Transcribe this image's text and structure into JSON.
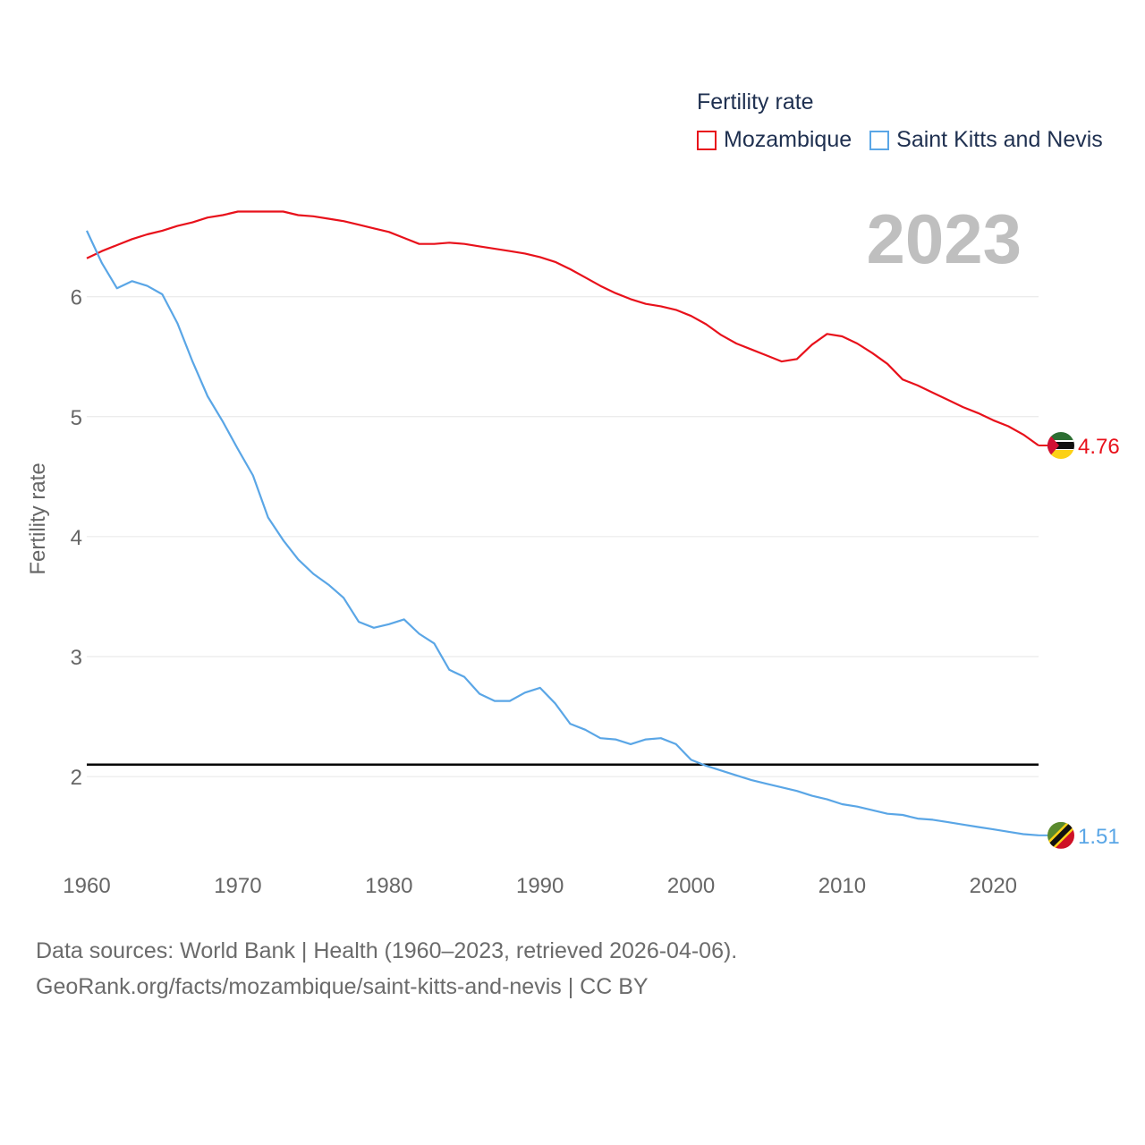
{
  "legend": {
    "title": "Fertility rate",
    "items": [
      {
        "name": "Mozambique",
        "color": "#e8111b"
      },
      {
        "name": "Saint Kitts and Nevis",
        "color": "#5aa6e6"
      }
    ]
  },
  "year_label": "2023",
  "sources": {
    "line1": "Data sources: World Bank | Health (1960–2023, retrieved 2026-04-06).",
    "line2": "GeoRank.org/facts/mozambique/saint-kitts-and-nevis | CC BY"
  },
  "chart_data": {
    "type": "line",
    "title": "",
    "xlabel": "",
    "ylabel": "Fertility rate",
    "xlim": [
      1960,
      2023
    ],
    "ylim": [
      1.3,
      6.9
    ],
    "x_ticks": [
      1960,
      1970,
      1980,
      1990,
      2000,
      2010,
      2020
    ],
    "y_ticks": [
      2,
      3,
      4,
      5,
      6
    ],
    "reference_line": {
      "value": 2.1,
      "color": "#000000"
    },
    "x": [
      1960,
      1961,
      1962,
      1963,
      1964,
      1965,
      1966,
      1967,
      1968,
      1969,
      1970,
      1971,
      1972,
      1973,
      1974,
      1975,
      1976,
      1977,
      1978,
      1979,
      1980,
      1981,
      1982,
      1983,
      1984,
      1985,
      1986,
      1987,
      1988,
      1989,
      1990,
      1991,
      1992,
      1993,
      1994,
      1995,
      1996,
      1997,
      1998,
      1999,
      2000,
      2001,
      2002,
      2003,
      2004,
      2005,
      2006,
      2007,
      2008,
      2009,
      2010,
      2011,
      2012,
      2013,
      2014,
      2015,
      2016,
      2017,
      2018,
      2019,
      2020,
      2021,
      2022,
      2023
    ],
    "series": [
      {
        "name": "Mozambique",
        "color": "#e8111b",
        "end_label": "4.76",
        "values": [
          6.32,
          6.38,
          6.43,
          6.48,
          6.52,
          6.55,
          6.59,
          6.62,
          6.66,
          6.68,
          6.71,
          6.71,
          6.71,
          6.71,
          6.68,
          6.67,
          6.65,
          6.63,
          6.6,
          6.57,
          6.54,
          6.49,
          6.44,
          6.44,
          6.45,
          6.44,
          6.42,
          6.4,
          6.38,
          6.36,
          6.33,
          6.29,
          6.23,
          6.16,
          6.09,
          6.03,
          5.98,
          5.94,
          5.92,
          5.89,
          5.84,
          5.77,
          5.68,
          5.61,
          5.56,
          5.51,
          5.46,
          5.48,
          5.6,
          5.69,
          5.67,
          5.61,
          5.53,
          5.44,
          5.31,
          5.26,
          5.2,
          5.14,
          5.08,
          5.03,
          4.97,
          4.92,
          4.85,
          4.76
        ]
      },
      {
        "name": "Saint Kitts and Nevis",
        "color": "#5aa6e6",
        "end_label": "1.51",
        "values": [
          6.55,
          6.28,
          6.07,
          6.13,
          6.09,
          6.02,
          5.78,
          5.46,
          5.17,
          4.96,
          4.73,
          4.51,
          4.16,
          3.97,
          3.81,
          3.69,
          3.6,
          3.49,
          3.29,
          3.24,
          3.27,
          3.31,
          3.19,
          3.11,
          2.89,
          2.83,
          2.69,
          2.63,
          2.63,
          2.7,
          2.74,
          2.61,
          2.44,
          2.39,
          2.32,
          2.31,
          2.27,
          2.31,
          2.32,
          2.27,
          2.14,
          2.09,
          2.05,
          2.01,
          1.97,
          1.94,
          1.91,
          1.88,
          1.84,
          1.81,
          1.77,
          1.75,
          1.72,
          1.69,
          1.68,
          1.65,
          1.64,
          1.62,
          1.6,
          1.58,
          1.56,
          1.54,
          1.52,
          1.51
        ]
      }
    ]
  }
}
